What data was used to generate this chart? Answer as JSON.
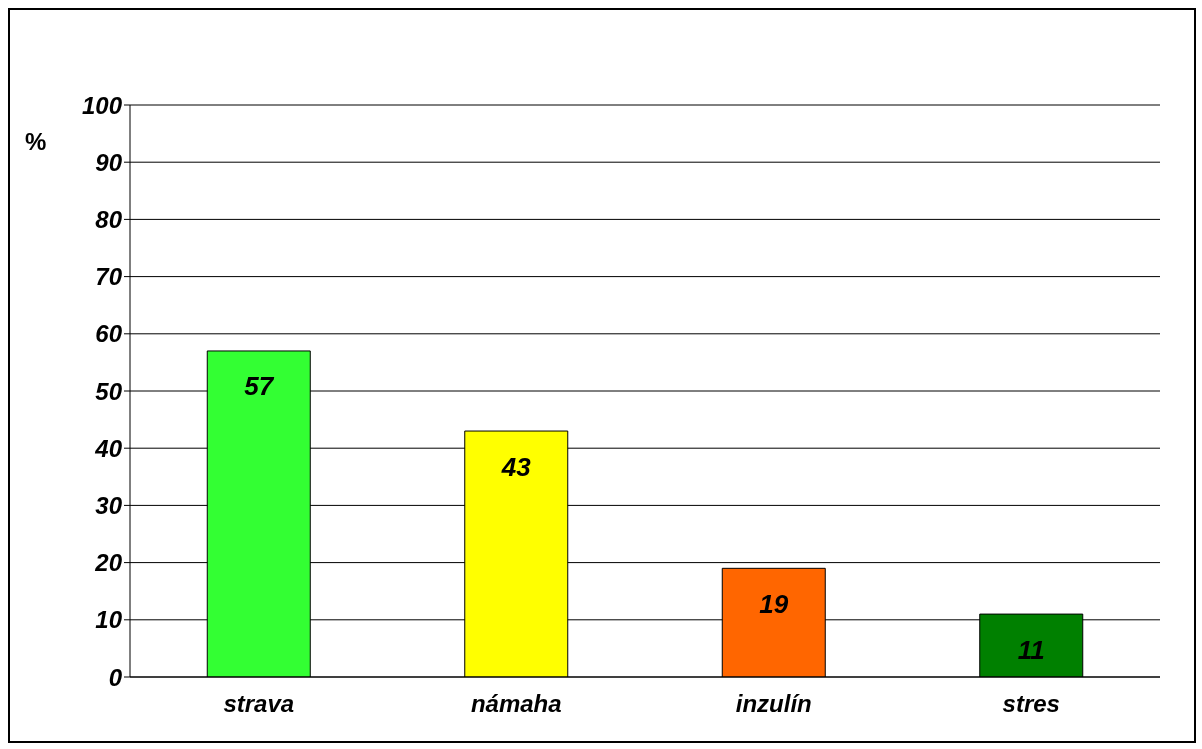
{
  "chart_data": {
    "type": "bar",
    "ylabel": "%",
    "categories": [
      "strava",
      "námaha",
      "inzulín",
      "stres"
    ],
    "values": [
      57,
      43,
      19,
      11
    ],
    "colors": [
      "#33ff33",
      "#ffff00",
      "#ff6600",
      "#008000"
    ],
    "ylim": [
      0,
      100
    ],
    "yticks": [
      0,
      10,
      20,
      30,
      40,
      50,
      60,
      70,
      80,
      90,
      100
    ],
    "grid": "y",
    "data_labels": true
  }
}
